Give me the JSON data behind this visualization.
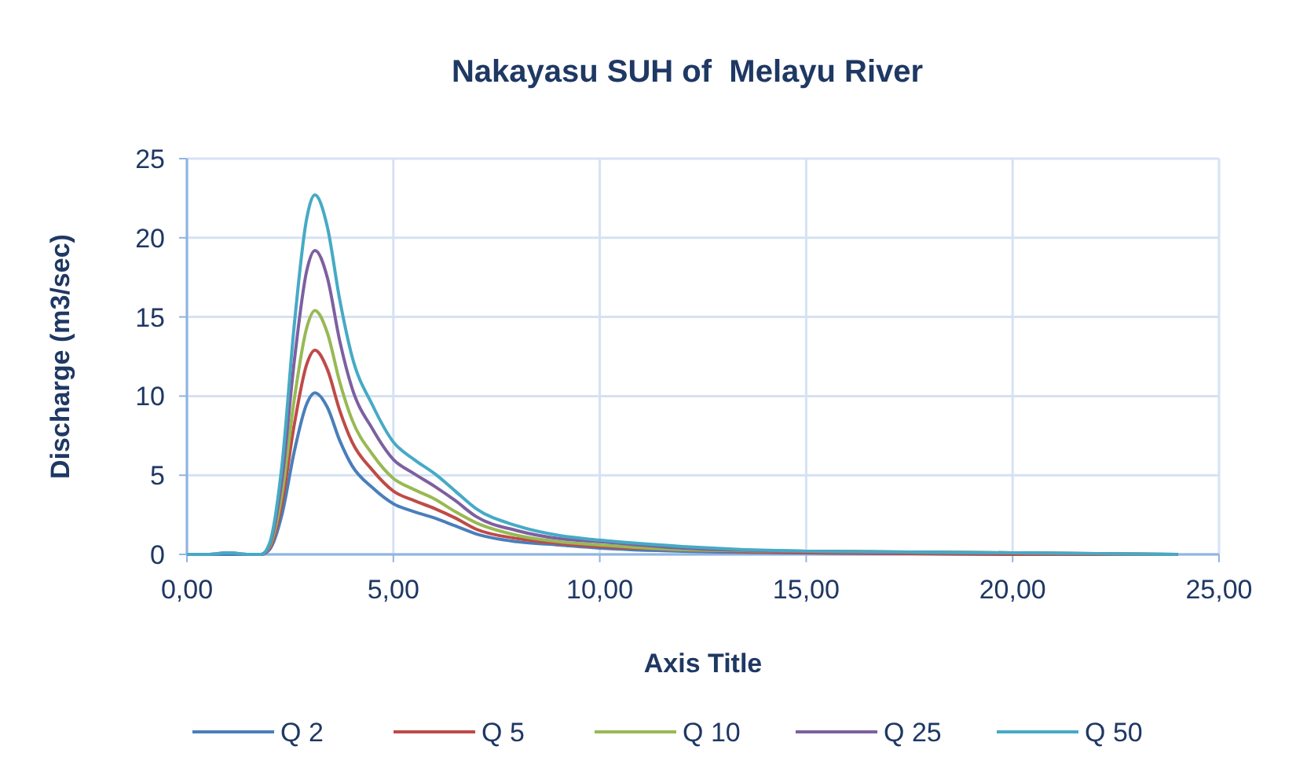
{
  "chart_data": {
    "type": "line",
    "title": "Nakayasu SUH of  Melayu River",
    "xlabel": "Axis Title",
    "ylabel": "Discharge (m3/sec)",
    "x": [
      0,
      0.5,
      1.0,
      1.5,
      1.8,
      2.0,
      2.3,
      2.6,
      2.9,
      3.1,
      3.4,
      3.7,
      4.0,
      4.5,
      5.0,
      5.5,
      6.0,
      6.5,
      7.0,
      8.0,
      9.0,
      10,
      12,
      15,
      20,
      24
    ],
    "series": [
      {
        "name": "Q 2",
        "color": "#4a7ebb",
        "values": [
          0,
          0,
          0,
          0,
          0,
          0.3,
          2.5,
          6.5,
          9.5,
          10.2,
          9.3,
          7.2,
          5.6,
          4.2,
          3.2,
          2.7,
          2.3,
          1.8,
          1.3,
          0.8,
          0.6,
          0.4,
          0.2,
          0.1,
          0,
          0
        ]
      },
      {
        "name": "Q 5",
        "color": "#be4b48",
        "values": [
          null,
          null,
          null,
          0,
          0,
          0.4,
          3.2,
          8.2,
          12.0,
          12.9,
          11.7,
          9.1,
          7.1,
          5.3,
          4.0,
          3.4,
          2.9,
          2.3,
          1.6,
          1.0,
          0.7,
          0.5,
          0.3,
          0.1,
          0,
          0
        ]
      },
      {
        "name": "Q 10",
        "color": "#98b954",
        "values": [
          null,
          null,
          null,
          0,
          0,
          0.5,
          3.8,
          9.8,
          14.3,
          15.4,
          14.0,
          10.9,
          8.5,
          6.3,
          4.8,
          4.1,
          3.5,
          2.7,
          2.0,
          1.2,
          0.8,
          0.6,
          0.3,
          0.2,
          0.1,
          0
        ]
      },
      {
        "name": "Q 25",
        "color": "#7d60a0",
        "values": [
          0,
          0,
          0.1,
          0,
          0,
          0.6,
          4.7,
          12.2,
          17.9,
          19.2,
          17.5,
          13.5,
          10.5,
          7.9,
          6.0,
          5.1,
          4.3,
          3.4,
          2.4,
          1.5,
          1.0,
          0.8,
          0.4,
          0.2,
          0.1,
          0
        ]
      },
      {
        "name": "Q 50",
        "color": "#46aac5",
        "values": [
          0,
          0,
          0.1,
          0,
          0,
          0.7,
          5.6,
          14.5,
          21.2,
          22.7,
          20.7,
          16.1,
          12.5,
          9.4,
          7.1,
          6.0,
          5.1,
          4.0,
          2.9,
          1.8,
          1.2,
          0.9,
          0.5,
          0.2,
          0.1,
          0
        ]
      }
    ],
    "xlim": [
      0,
      25
    ],
    "xticks": [
      {
        "value": 0,
        "label": "0,00"
      },
      {
        "value": 5,
        "label": "5,00"
      },
      {
        "value": 10,
        "label": "10,00"
      },
      {
        "value": 15,
        "label": "15,00"
      },
      {
        "value": 20,
        "label": "20,00"
      },
      {
        "value": 25,
        "label": "25,00"
      }
    ],
    "ylim": [
      0,
      25
    ],
    "yticks": [
      0,
      5,
      10,
      15,
      20,
      25
    ],
    "grid": true,
    "legend": "bottom",
    "marker": "none",
    "line_style": "solid"
  }
}
